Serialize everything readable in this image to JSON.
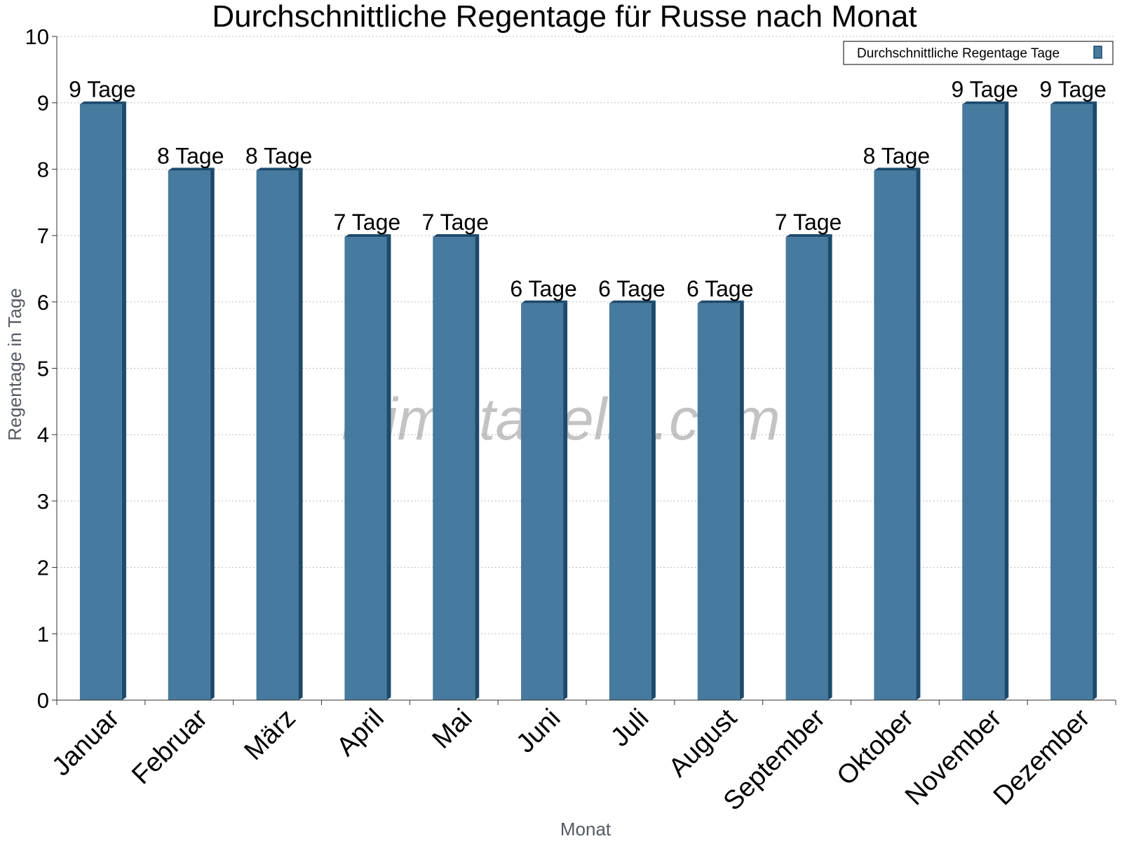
{
  "title": "Durchschnittliche Regentage für Russe nach Monat",
  "watermark": "klimatabelle.com",
  "legend": {
    "label": "Durchschnittliche Regentage Tage",
    "position": "top-right"
  },
  "colors": {
    "bar": "#467a9e",
    "bar_side": "#1c4a6c",
    "grid": "#bbbbbb",
    "axis": "#333333"
  },
  "chart_data": {
    "type": "bar",
    "title": "Durchschnittliche Regentage für Russe nach Monat",
    "xlabel": "Monat",
    "ylabel": "Regentage in Tage",
    "ylim": [
      0,
      10
    ],
    "yticks": [
      0,
      1,
      2,
      3,
      4,
      5,
      6,
      7,
      8,
      9,
      10
    ],
    "grid": true,
    "legend_position": "top-right",
    "categories": [
      "Januar",
      "Februar",
      "März",
      "April",
      "Mai",
      "Juni",
      "Juli",
      "August",
      "September",
      "Oktober",
      "November",
      "Dezember"
    ],
    "series": [
      {
        "name": "Durchschnittliche Regentage Tage",
        "values": [
          9,
          8,
          8,
          7,
          7,
          6,
          6,
          6,
          7,
          8,
          9,
          9
        ],
        "labels": [
          "9 Tage",
          "8 Tage",
          "8 Tage",
          "7 Tage",
          "7 Tage",
          "6 Tage",
          "6 Tage",
          "6 Tage",
          "7 Tage",
          "8 Tage",
          "9 Tage",
          "9 Tage"
        ]
      }
    ]
  }
}
